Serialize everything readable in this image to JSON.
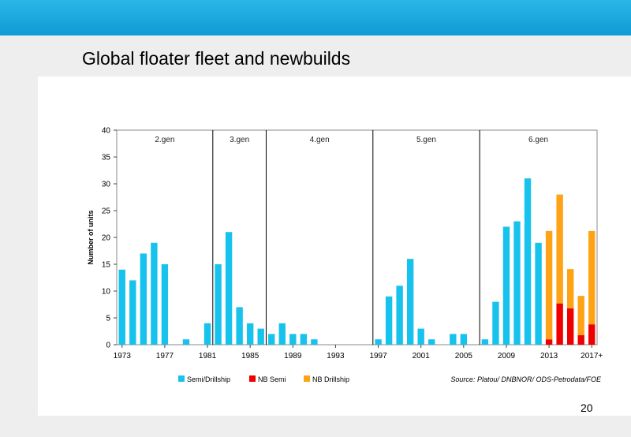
{
  "slide": {
    "title": "Global floater fleet and newbuilds",
    "page_number": "20",
    "colors": {
      "header_bar": "#19a8df",
      "band": "#eeeeee"
    }
  },
  "chart_data": {
    "type": "bar",
    "stacked": true,
    "title": "",
    "xlabel": "",
    "ylabel": "Number of units",
    "ylim": [
      0,
      40
    ],
    "yticks": [
      0,
      5,
      10,
      15,
      20,
      25,
      30,
      35,
      40
    ],
    "grid": false,
    "legend_position": "bottom",
    "source": "Source: Platou/ DNBNOR/ ODS-Petrodata/FOE",
    "categories": [
      "1973",
      "1974",
      "1975",
      "1976",
      "1977",
      "1978",
      "1979",
      "1980",
      "1981",
      "1982",
      "1983",
      "1984",
      "1985",
      "1986",
      "1987",
      "1988",
      "1989",
      "1990",
      "1991",
      "1992",
      "1993",
      "1994",
      "1995",
      "1996",
      "1997",
      "1998",
      "1999",
      "2000",
      "2001",
      "2002",
      "2003",
      "2004",
      "2005",
      "2006",
      "2007",
      "2008",
      "2009",
      "2010",
      "2011",
      "2012",
      "2013",
      "2014",
      "2015",
      "2016",
      "2017+"
    ],
    "tick_labels": [
      {
        "category": "1973",
        "label": "1973"
      },
      {
        "category": "1977",
        "label": "1977"
      },
      {
        "category": "1981",
        "label": "1981"
      },
      {
        "category": "1985",
        "label": "1985"
      },
      {
        "category": "1989",
        "label": "1989"
      },
      {
        "category": "1993",
        "label": "1993"
      },
      {
        "category": "1997",
        "label": "1997"
      },
      {
        "category": "2001",
        "label": "2001"
      },
      {
        "category": "2005",
        "label": "2005"
      },
      {
        "category": "2009",
        "label": "2009"
      },
      {
        "category": "2013",
        "label": "2013"
      },
      {
        "category": "2017+",
        "label": "2017+"
      }
    ],
    "series": [
      {
        "name": "Semi/Drillship",
        "color": "#17c3ec",
        "values": [
          14,
          12,
          17,
          19,
          15,
          0,
          1,
          0,
          4,
          15,
          21,
          7,
          4,
          3,
          2,
          4,
          2,
          2,
          1,
          0,
          0,
          0,
          0,
          0,
          1,
          9,
          11,
          16,
          3,
          1,
          0,
          2,
          2,
          0,
          1,
          8,
          22,
          23,
          31,
          19,
          0,
          0,
          0,
          0,
          0
        ]
      },
      {
        "name": "NB Semi",
        "color": "#ee0000",
        "values": [
          0,
          0,
          0,
          0,
          0,
          0,
          0,
          0,
          0,
          0,
          0,
          0,
          0,
          0,
          0,
          0,
          0,
          0,
          0,
          0,
          0,
          0,
          0,
          0,
          0,
          0,
          0,
          0,
          0,
          0,
          0,
          0,
          0,
          0,
          0,
          0,
          0,
          0,
          0,
          0,
          1,
          7.7,
          6.8,
          1.8,
          3.8
        ]
      },
      {
        "name": "NB Drillship",
        "color": "#ffa316",
        "values": [
          0,
          0,
          0,
          0,
          0,
          0,
          0,
          0,
          0,
          0,
          0,
          0,
          0,
          0,
          0,
          0,
          0,
          0,
          0,
          0,
          0,
          0,
          0,
          0,
          0,
          0,
          0,
          0,
          0,
          0,
          0,
          0,
          0,
          0,
          0,
          0,
          0,
          0,
          0,
          0,
          20.2,
          20.3,
          7.3,
          7.3,
          17.4
        ]
      }
    ],
    "generations": [
      {
        "label": "2.gen",
        "start": "1973",
        "end": "1981"
      },
      {
        "label": "3.gen",
        "start": "1982",
        "end": "1986"
      },
      {
        "label": "4.gen",
        "start": "1987",
        "end": "1996"
      },
      {
        "label": "5.gen",
        "start": "1997",
        "end": "2006"
      },
      {
        "label": "6.gen",
        "start": "2007",
        "end": "2017+"
      }
    ]
  }
}
